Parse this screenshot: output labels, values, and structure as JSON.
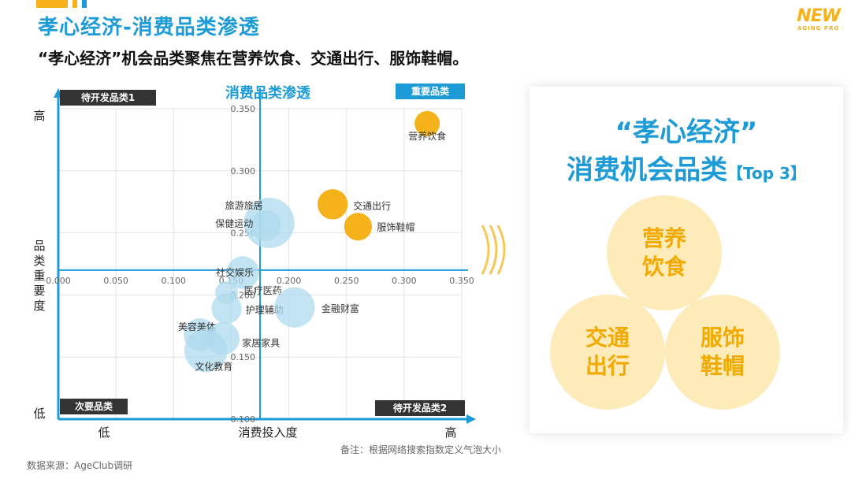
{
  "header": {
    "title": "孝心经济-消费品类渗透",
    "subtitle": "“孝心经济”机会品类聚焦在营养饮食、交通出行、服饰鞋帽。",
    "logo_main": "NEW",
    "logo_sub": "AGING PRO"
  },
  "colors": {
    "accent_blue": "#1d9bd6",
    "orange": "#f5b21a",
    "light_blue": "#bfe3f2",
    "dark_box": "#333333"
  },
  "chart_data": {
    "type": "scatter",
    "title": "消费品类渗透",
    "xlabel": "消费投入度",
    "ylabel": "品类重要度",
    "x_low_label": "低",
    "x_high_label": "高",
    "y_low_label": "低",
    "y_high_label": "高",
    "xlim": [
      0,
      0.35
    ],
    "ylim": [
      0.1,
      0.35
    ],
    "x_ticks": [
      "0.000",
      "0.050",
      "0.100",
      "0.150",
      "0.200",
      "0.250",
      "0.300",
      "0.350"
    ],
    "y_ticks": [
      "0.100",
      "0.150",
      "0.200",
      "0.250",
      "0.300",
      "0.350"
    ],
    "quadrants": {
      "top_left": "待开发品类1",
      "top_right": "重要品类",
      "bottom_left": "次要品类",
      "bottom_right": "待开发品类2"
    },
    "points": [
      {
        "label": "营养饮食",
        "x": 0.32,
        "y": 0.338,
        "size": 1.0,
        "color": "orange"
      },
      {
        "label": "交通出行",
        "x": 0.238,
        "y": 0.273,
        "size": 1.2,
        "color": "orange"
      },
      {
        "label": "服饰鞋帽",
        "x": 0.26,
        "y": 0.255,
        "size": 1.1,
        "color": "orange"
      },
      {
        "label": "旅游旅居",
        "x": 0.183,
        "y": 0.258,
        "size": 2.0,
        "color": "blue"
      },
      {
        "label": "保健运动",
        "x": 0.18,
        "y": 0.256,
        "size": 1.2,
        "color": "blue"
      },
      {
        "label": "社交娱乐",
        "x": 0.16,
        "y": 0.218,
        "size": 1.3,
        "color": "blue"
      },
      {
        "label": "医疗医药",
        "x": 0.146,
        "y": 0.202,
        "size": 0.9,
        "color": "blue"
      },
      {
        "label": "护理辅助",
        "x": 0.146,
        "y": 0.189,
        "size": 1.2,
        "color": "blue"
      },
      {
        "label": "金融财富",
        "x": 0.205,
        "y": 0.19,
        "size": 1.6,
        "color": "blue"
      },
      {
        "label": "美容美体",
        "x": 0.123,
        "y": 0.168,
        "size": 1.3,
        "color": "blue"
      },
      {
        "label": "家居家具",
        "x": 0.143,
        "y": 0.165,
        "size": 1.3,
        "color": "blue"
      },
      {
        "label": "文化教育",
        "x": 0.128,
        "y": 0.155,
        "size": 1.7,
        "color": "blue"
      }
    ]
  },
  "note": "备注：根据网络搜索指数定义气泡大小",
  "source": "数据来源：AgeClub调研",
  "panel": {
    "heading1": "“孝心经济”",
    "heading2": "消费机会品类",
    "heading2_tag": "【Top 3】",
    "circles": [
      {
        "line1": "营养",
        "line2": "饮食"
      },
      {
        "line1": "交通",
        "line2": "出行"
      },
      {
        "line1": "服饰",
        "line2": "鞋帽"
      }
    ]
  }
}
